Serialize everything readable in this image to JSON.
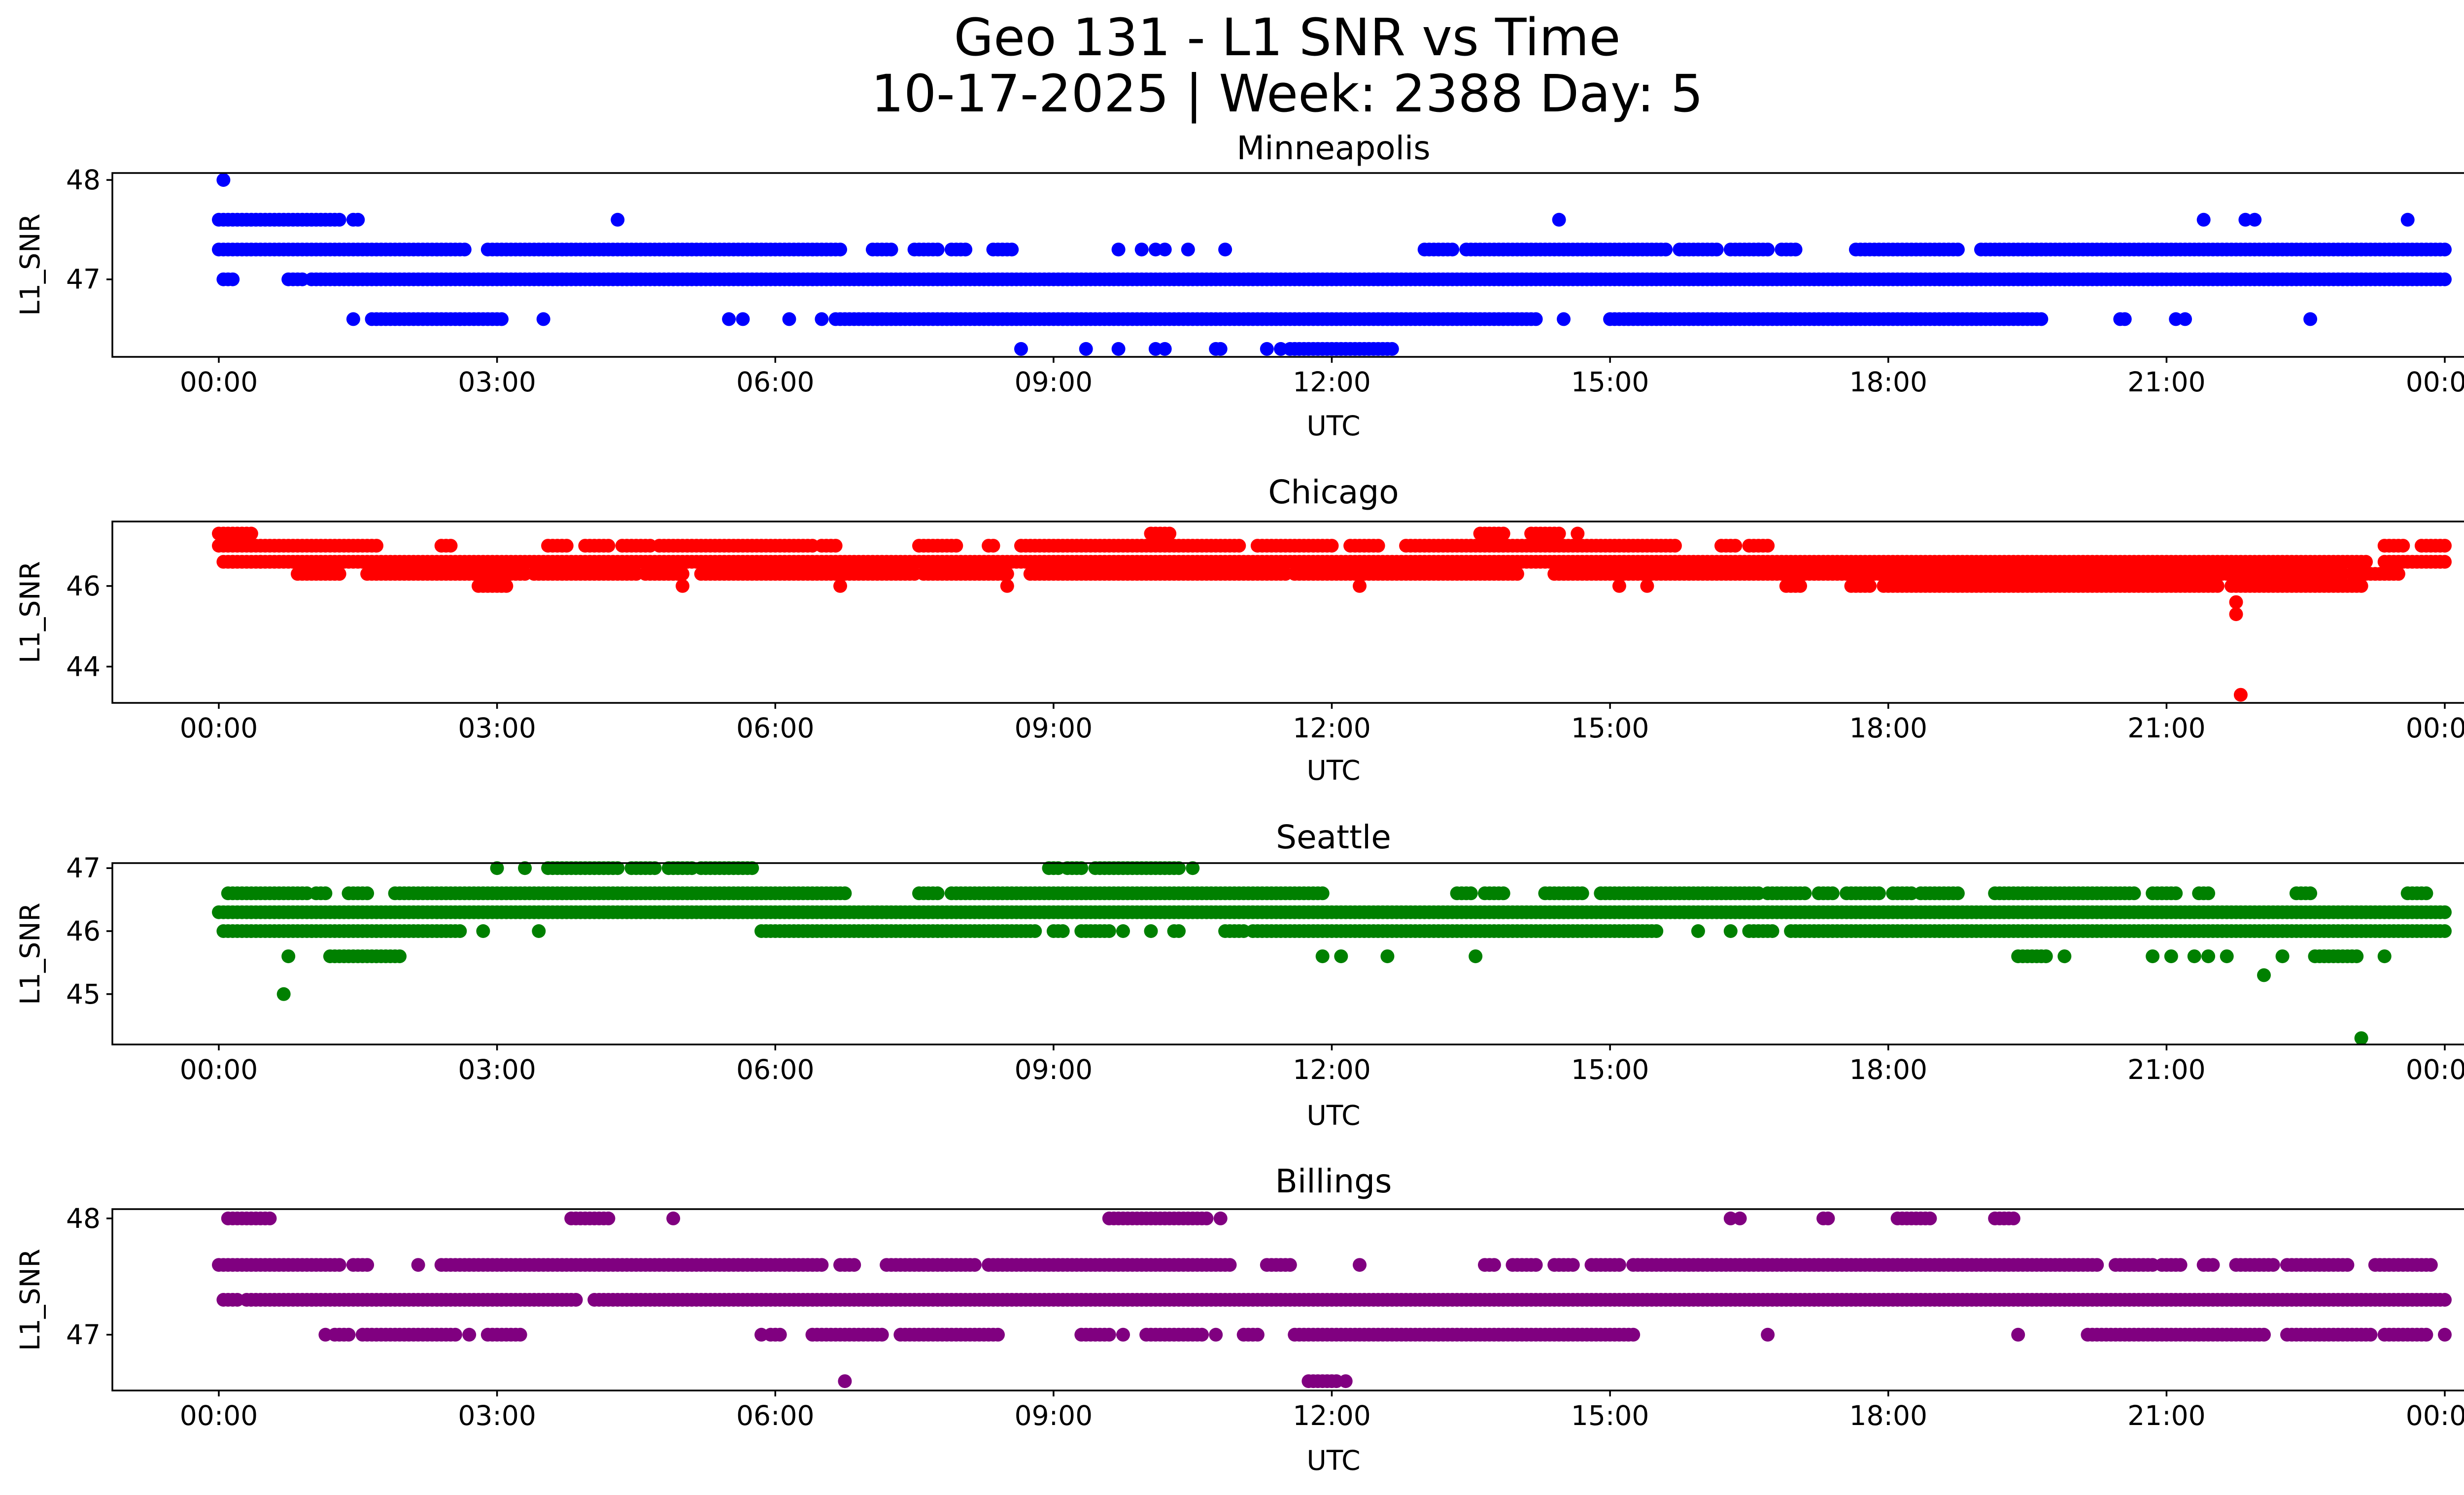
{
  "title_line1": "Geo 131 - L1 SNR vs Time",
  "title_line2": "10-17-2025 | Week: 2388 Day: 5",
  "chart_data": [
    {
      "type": "scatter",
      "title": "Minneapolis",
      "color": "#0000ff",
      "xlabel": "UTC",
      "ylabel": "L1_SNR",
      "xlim": [
        0,
        24
      ],
      "ylim": [
        46.22,
        48.07
      ],
      "xticks": [
        0,
        3,
        6,
        9,
        12,
        15,
        18,
        21,
        24
      ],
      "xtick_labels": [
        "00:00",
        "03:00",
        "06:00",
        "09:00",
        "12:00",
        "15:00",
        "18:00",
        "21:00",
        "00:00"
      ],
      "yticks": [
        47,
        48
      ],
      "ytick_labels": [
        "47",
        "48"
      ],
      "runs": [
        {
          "y": 47.3,
          "segments": [
            [
              0,
              2.65
            ],
            [
              2.9,
              6.7
            ],
            [
              7.05,
              7.25
            ],
            [
              7.5,
              7.75
            ],
            [
              7.9,
              8.05
            ],
            [
              8.35,
              8.55
            ],
            [
              13.0,
              13.3
            ],
            [
              13.45,
              15.6
            ],
            [
              15.75,
              16.15
            ],
            [
              16.3,
              16.65
            ],
            [
              16.85,
              17.0
            ],
            [
              17.65,
              18.75
            ],
            [
              19.0,
              24.0
            ]
          ]
        },
        {
          "y": 47.0,
          "segments": [
            [
              0.05,
              0.15
            ],
            [
              0.75,
              0.9
            ],
            [
              1.0,
              24.0
            ]
          ]
        },
        {
          "y": 47.6,
          "segments": [
            [
              0.0,
              1.3
            ],
            [
              1.45,
              1.5
            ]
          ]
        },
        {
          "y": 46.6,
          "segments": [
            [
              1.65,
              2.6
            ],
            [
              2.6,
              3.05
            ],
            [
              6.65,
              14.2
            ],
            [
              15.0,
              19.65
            ]
          ]
        },
        {
          "y": 46.3,
          "segments": [
            [
              11.55,
              12.65
            ]
          ]
        }
      ],
      "points": [
        [
          0.05,
          48.0
        ],
        [
          1.45,
          46.6
        ],
        [
          3.5,
          46.6
        ],
        [
          5.5,
          46.6
        ],
        [
          5.65,
          46.6
        ],
        [
          6.15,
          46.6
        ],
        [
          6.5,
          46.6
        ],
        [
          14.5,
          46.6
        ],
        [
          20.5,
          46.6
        ],
        [
          20.55,
          46.6
        ],
        [
          21.1,
          46.6
        ],
        [
          21.2,
          46.6
        ],
        [
          22.55,
          46.6
        ],
        [
          8.65,
          46.3
        ],
        [
          9.35,
          46.3
        ],
        [
          9.7,
          46.3
        ],
        [
          10.1,
          46.3
        ],
        [
          10.2,
          46.3
        ],
        [
          10.75,
          46.3
        ],
        [
          10.8,
          46.3
        ],
        [
          11.3,
          46.3
        ],
        [
          11.45,
          46.3
        ],
        [
          4.3,
          47.6
        ],
        [
          14.45,
          47.6
        ],
        [
          21.4,
          47.6
        ],
        [
          21.85,
          47.6
        ],
        [
          21.95,
          47.6
        ],
        [
          23.6,
          47.6
        ],
        [
          9.7,
          47.3
        ],
        [
          9.95,
          47.3
        ],
        [
          10.1,
          47.3
        ],
        [
          10.2,
          47.3
        ],
        [
          10.45,
          47.3
        ],
        [
          10.85,
          47.3
        ],
        [
          16.6,
          47.3
        ],
        [
          16.7,
          47.3
        ]
      ]
    },
    {
      "type": "scatter",
      "title": "Chicago",
      "color": "#ff0000",
      "xlabel": "UTC",
      "ylabel": "L1_SNR",
      "xlim": [
        0,
        24
      ],
      "ylim": [
        43.1,
        47.6
      ],
      "xticks": [
        0,
        3,
        6,
        9,
        12,
        15,
        18,
        21,
        24
      ],
      "xtick_labels": [
        "00:00",
        "03:00",
        "06:00",
        "09:00",
        "12:00",
        "15:00",
        "18:00",
        "21:00",
        "00:00"
      ],
      "yticks": [
        44,
        46
      ],
      "ytick_labels": [
        "44",
        "46"
      ],
      "runs": [
        {
          "y": 47.0,
          "segments": [
            [
              0,
              1.7
            ],
            [
              2.4,
              2.5
            ],
            [
              3.55,
              3.75
            ],
            [
              3.95,
              4.2
            ],
            [
              4.35,
              4.65
            ],
            [
              4.75,
              6.4
            ],
            [
              6.5,
              6.65
            ],
            [
              7.55,
              7.95
            ],
            [
              8.3,
              8.35
            ],
            [
              8.65,
              11.0
            ],
            [
              11.2,
              12.0
            ],
            [
              12.2,
              12.5
            ],
            [
              12.8,
              15.7
            ],
            [
              16.2,
              16.35
            ],
            [
              16.5,
              16.7
            ],
            [
              23.35,
              23.55
            ],
            [
              23.75,
              24.0
            ]
          ]
        },
        {
          "y": 46.6,
          "segments": [
            [
              0.05,
              23.15
            ],
            [
              23.35,
              24.0
            ]
          ]
        },
        {
          "y": 46.3,
          "segments": [
            [
              0.85,
              1.3
            ],
            [
              1.6,
              3.3
            ],
            [
              3.4,
              4.5
            ],
            [
              4.6,
              5.0
            ],
            [
              5.2,
              7.5
            ],
            [
              7.6,
              8.5
            ],
            [
              8.75,
              11.5
            ],
            [
              11.6,
              14.0
            ],
            [
              14.4,
              22.9
            ],
            [
              23.0,
              23.5
            ]
          ]
        },
        {
          "y": 46.0,
          "segments": [
            [
              2.8,
              3.1
            ],
            [
              16.9,
              17.05
            ],
            [
              17.6,
              17.8
            ],
            [
              17.95,
              21.05
            ],
            [
              21.1,
              21.55
            ],
            [
              21.7,
              23.1
            ]
          ]
        },
        {
          "y": 47.3,
          "segments": [
            [
              0.0,
              0.35
            ],
            [
              10.05,
              10.25
            ],
            [
              13.6,
              13.85
            ],
            [
              14.15,
              14.45
            ]
          ]
        }
      ],
      "points": [
        [
          0.15,
          46.6
        ],
        [
          0.45,
          46.6
        ],
        [
          5.0,
          46.0
        ],
        [
          6.7,
          46.0
        ],
        [
          8.5,
          46.0
        ],
        [
          12.3,
          46.0
        ],
        [
          15.1,
          46.0
        ],
        [
          15.4,
          46.0
        ],
        [
          14.65,
          47.3
        ],
        [
          21.75,
          45.6
        ],
        [
          21.75,
          45.3
        ],
        [
          21.8,
          43.3
        ]
      ]
    },
    {
      "type": "scatter",
      "title": "Seattle",
      "color": "#008000",
      "xlabel": "UTC",
      "ylabel": "L1_SNR",
      "xlim": [
        0,
        24
      ],
      "ylim": [
        44.2,
        47.08
      ],
      "xticks": [
        0,
        3,
        6,
        9,
        12,
        15,
        18,
        21,
        24
      ],
      "xtick_labels": [
        "00:00",
        "03:00",
        "06:00",
        "09:00",
        "12:00",
        "15:00",
        "18:00",
        "21:00",
        "00:00"
      ],
      "yticks": [
        45,
        46,
        47
      ],
      "ytick_labels": [
        "45",
        "46",
        "47"
      ],
      "runs": [
        {
          "y": 46.3,
          "segments": [
            [
              0,
              24.0
            ]
          ]
        },
        {
          "y": 46.6,
          "segments": [
            [
              0.1,
              0.95
            ],
            [
              1.05,
              1.15
            ],
            [
              1.4,
              1.6
            ],
            [
              1.9,
              6.75
            ],
            [
              7.55,
              7.75
            ],
            [
              7.9,
              11.9
            ],
            [
              13.35,
              13.5
            ],
            [
              13.65,
              13.85
            ],
            [
              14.3,
              14.7
            ],
            [
              14.9,
              16.6
            ],
            [
              16.7,
              17.1
            ],
            [
              17.25,
              17.4
            ],
            [
              17.55,
              17.9
            ],
            [
              18.05,
              18.25
            ],
            [
              18.35,
              18.75
            ],
            [
              19.15,
              20.65
            ],
            [
              20.85,
              21.1
            ],
            [
              21.35,
              21.45
            ],
            [
              22.4,
              22.55
            ],
            [
              23.6,
              23.8
            ]
          ]
        },
        {
          "y": 46.0,
          "segments": [
            [
              0.05,
              2.6
            ],
            [
              5.85,
              8.8
            ],
            [
              9.0,
              9.1
            ],
            [
              9.3,
              9.6
            ],
            [
              10.3,
              10.35
            ],
            [
              10.85,
              11.05
            ],
            [
              11.15,
              15.5
            ],
            [
              16.5,
              16.75
            ],
            [
              16.95,
              24.0
            ]
          ]
        },
        {
          "y": 47.0,
          "segments": [
            [
              3.55,
              4.3
            ],
            [
              4.45,
              4.7
            ],
            [
              4.85,
              5.1
            ],
            [
              5.2,
              5.75
            ],
            [
              8.95,
              9.05
            ],
            [
              9.15,
              9.3
            ],
            [
              9.45,
              10.35
            ]
          ]
        },
        {
          "y": 45.6,
          "segments": [
            [
              1.2,
              1.95
            ],
            [
              19.4,
              19.7
            ],
            [
              22.6,
              23.05
            ]
          ]
        }
      ],
      "points": [
        [
          2.85,
          46.0
        ],
        [
          3.45,
          46.0
        ],
        [
          9.75,
          46.0
        ],
        [
          10.05,
          46.0
        ],
        [
          15.95,
          46.0
        ],
        [
          16.3,
          46.0
        ],
        [
          3.0,
          47.0
        ],
        [
          3.3,
          47.0
        ],
        [
          10.5,
          47.0
        ],
        [
          0.75,
          45.6
        ],
        [
          11.9,
          45.6
        ],
        [
          12.1,
          45.6
        ],
        [
          12.6,
          45.6
        ],
        [
          13.55,
          45.6
        ],
        [
          19.9,
          45.6
        ],
        [
          20.85,
          45.6
        ],
        [
          21.05,
          45.6
        ],
        [
          21.3,
          45.6
        ],
        [
          21.45,
          45.6
        ],
        [
          21.65,
          45.6
        ],
        [
          22.25,
          45.6
        ],
        [
          23.35,
          45.6
        ],
        [
          0.7,
          45.0
        ],
        [
          22.05,
          45.3
        ],
        [
          23.1,
          44.3
        ]
      ]
    },
    {
      "type": "scatter",
      "title": "Billings",
      "color": "#800080",
      "xlabel": "UTC",
      "ylabel": "L1_SNR",
      "xlim": [
        0,
        24
      ],
      "ylim": [
        46.52,
        48.08
      ],
      "xticks": [
        0,
        3,
        6,
        9,
        12,
        15,
        18,
        21,
        24
      ],
      "xtick_labels": [
        "00:00",
        "03:00",
        "06:00",
        "09:00",
        "12:00",
        "15:00",
        "18:00",
        "21:00",
        "00:00"
      ],
      "yticks": [
        47,
        48
      ],
      "ytick_labels": [
        "47",
        "48"
      ],
      "runs": [
        {
          "y": 47.3,
          "segments": [
            [
              0.05,
              0.2
            ],
            [
              0.3,
              3.85
            ],
            [
              4.05,
              24.0
            ]
          ]
        },
        {
          "y": 47.6,
          "segments": [
            [
              0,
              1.3
            ],
            [
              1.45,
              1.6
            ],
            [
              2.4,
              6.5
            ],
            [
              6.7,
              6.85
            ],
            [
              7.2,
              8.15
            ],
            [
              8.3,
              10.9
            ],
            [
              11.3,
              11.55
            ],
            [
              13.65,
              13.75
            ],
            [
              13.95,
              14.2
            ],
            [
              14.4,
              14.6
            ],
            [
              14.8,
              15.1
            ],
            [
              15.25,
              20.25
            ],
            [
              20.45,
              20.85
            ],
            [
              20.95,
              21.15
            ],
            [
              21.4,
              21.5
            ],
            [
              21.75,
              22.15
            ],
            [
              22.3,
              22.95
            ],
            [
              23.25,
              23.85
            ]
          ]
        },
        {
          "y": 47.0,
          "segments": [
            [
              1.3,
              1.4
            ],
            [
              1.55,
              2.55
            ],
            [
              2.9,
              3.25
            ],
            [
              5.95,
              6.05
            ],
            [
              6.4,
              7.15
            ],
            [
              7.35,
              8.4
            ],
            [
              9.3,
              9.6
            ],
            [
              10.0,
              10.6
            ],
            [
              11.05,
              11.2
            ],
            [
              11.6,
              15.25
            ],
            [
              20.15,
              22.05
            ],
            [
              22.3,
              23.2
            ],
            [
              23.35,
              23.8
            ]
          ]
        },
        {
          "y": 48.0,
          "segments": [
            [
              0.1,
              0.55
            ],
            [
              3.8,
              4.2
            ],
            [
              9.6,
              10.65
            ],
            [
              18.1,
              18.45
            ],
            [
              19.15,
              19.35
            ]
          ]
        },
        {
          "y": 46.6,
          "segments": [
            [
              11.75,
              12.05
            ]
          ]
        }
      ],
      "points": [
        [
          2.15,
          47.6
        ],
        [
          12.3,
          47.6
        ],
        [
          1.15,
          47.0
        ],
        [
          1.25,
          47.0
        ],
        [
          2.7,
          47.0
        ],
        [
          5.85,
          47.0
        ],
        [
          9.75,
          47.0
        ],
        [
          10.75,
          47.0
        ],
        [
          16.7,
          47.0
        ],
        [
          19.4,
          47.0
        ],
        [
          24.0,
          47.0
        ],
        [
          4.9,
          48.0
        ],
        [
          10.8,
          48.0
        ],
        [
          16.3,
          48.0
        ],
        [
          16.4,
          48.0
        ],
        [
          17.3,
          48.0
        ],
        [
          17.35,
          48.0
        ],
        [
          6.75,
          46.6
        ],
        [
          12.15,
          46.6
        ]
      ]
    }
  ]
}
